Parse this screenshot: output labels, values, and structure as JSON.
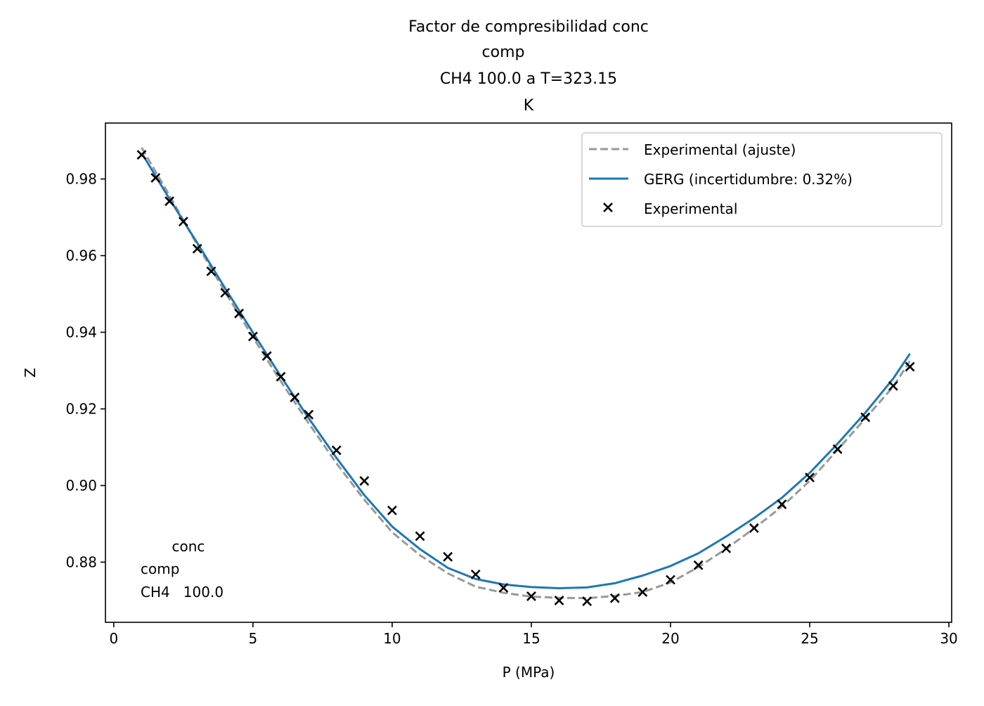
{
  "chart_data": {
    "type": "line",
    "title_lines": [
      "Factor de compresibilidad        conc",
      "comp",
      "CH4   100.0 a T=323.15",
      "K"
    ],
    "xlabel": "P (MPa)",
    "ylabel": "Z",
    "xlim": [
      -0.3,
      30.1
    ],
    "ylim": [
      0.8643,
      0.9946
    ],
    "xticks": [
      0,
      5,
      10,
      15,
      20,
      25,
      30
    ],
    "yticks": [
      0.88,
      0.9,
      0.92,
      0.94,
      0.96,
      0.98
    ],
    "grid": false,
    "legend_position": "top-right",
    "annotation_lines": [
      "       conc",
      "comp",
      "CH4   100.0"
    ],
    "series": [
      {
        "name": "Experimental (ajuste)",
        "kind": "line",
        "style": "dashed",
        "color": "#999999",
        "x": [
          1.0,
          2.0,
          3.0,
          4.0,
          5.0,
          6.0,
          7.0,
          8.0,
          9.0,
          10.0,
          11.0,
          12.0,
          13.0,
          14.0,
          15.0,
          16.0,
          17.0,
          18.0,
          19.0,
          20.0,
          21.0,
          22.0,
          23.0,
          24.0,
          25.0,
          26.0,
          27.0,
          28.0,
          28.6
        ],
        "y": [
          0.9882,
          0.9757,
          0.9628,
          0.9505,
          0.9387,
          0.9272,
          0.9163,
          0.9058,
          0.8963,
          0.8878,
          0.8818,
          0.8771,
          0.8736,
          0.872,
          0.871,
          0.8707,
          0.8706,
          0.8712,
          0.8722,
          0.8747,
          0.8787,
          0.8835,
          0.8888,
          0.8945,
          0.9012,
          0.9093,
          0.9175,
          0.9258,
          0.9325
        ]
      },
      {
        "name": "GERG (incertidumbre: 0.32%)",
        "kind": "line",
        "style": "solid",
        "color": "#1f77b4",
        "x": [
          1.0,
          2.0,
          3.0,
          4.0,
          5.0,
          6.0,
          7.0,
          8.0,
          9.0,
          10.0,
          11.0,
          12.0,
          13.0,
          14.0,
          15.0,
          16.0,
          17.0,
          18.0,
          19.0,
          20.0,
          21.0,
          22.0,
          23.0,
          24.0,
          25.0,
          26.0,
          27.0,
          28.0,
          28.6
        ],
        "y": [
          0.9868,
          0.9748,
          0.9633,
          0.9515,
          0.9399,
          0.9285,
          0.9176,
          0.9072,
          0.8975,
          0.8893,
          0.8834,
          0.8785,
          0.8756,
          0.8742,
          0.8735,
          0.8732,
          0.8734,
          0.8745,
          0.8765,
          0.879,
          0.8823,
          0.8867,
          0.8915,
          0.8968,
          0.9033,
          0.9109,
          0.919,
          0.9279,
          0.9344
        ]
      },
      {
        "name": "Experimental",
        "kind": "scatter",
        "marker": "x",
        "color": "#000000",
        "x": [
          1.0,
          1.5,
          2.0,
          2.5,
          3.0,
          3.5,
          4.0,
          4.5,
          5.0,
          5.5,
          6.0,
          6.5,
          7.0,
          8.0,
          9.0,
          10.0,
          11.0,
          12.0,
          13.0,
          14.0,
          15.0,
          16.0,
          17.0,
          18.0,
          19.0,
          20.0,
          21.0,
          22.0,
          23.0,
          24.0,
          25.0,
          26.0,
          27.0,
          28.0,
          28.6
        ],
        "y": [
          0.9863,
          0.9803,
          0.9742,
          0.9689,
          0.9618,
          0.9559,
          0.9503,
          0.9449,
          0.9389,
          0.9338,
          0.9284,
          0.923,
          0.9185,
          0.9092,
          0.9012,
          0.8935,
          0.8868,
          0.8814,
          0.8768,
          0.8733,
          0.8711,
          0.87,
          0.8698,
          0.8706,
          0.8722,
          0.8754,
          0.8792,
          0.8836,
          0.8889,
          0.8951,
          0.9021,
          0.9095,
          0.9178,
          0.926,
          0.931
        ]
      }
    ]
  }
}
